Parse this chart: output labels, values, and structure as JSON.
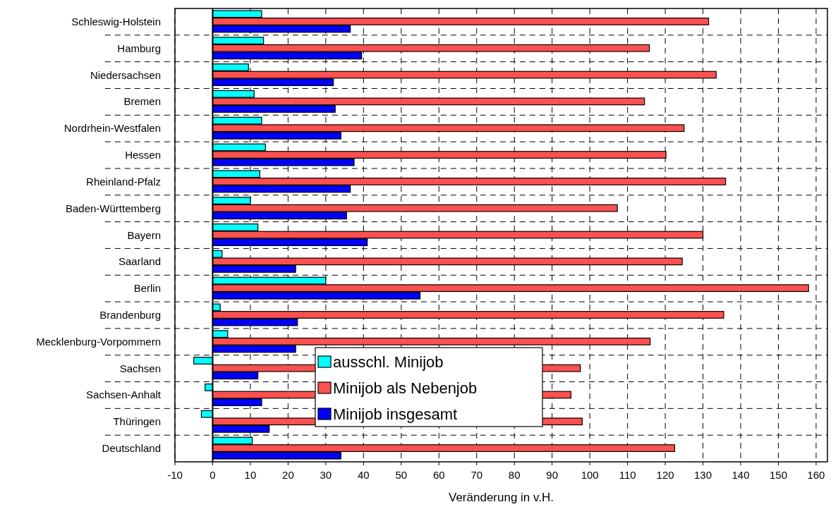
{
  "chart_data": {
    "type": "bar",
    "orientation": "horizontal",
    "xlabel": "Veränderung in v.H.",
    "categories": [
      "Schleswig-Holstein",
      "Hamburg",
      "Niedersachsen",
      "Bremen",
      "Nordrhein-Westfalen",
      "Hessen",
      "Rheinland-Pfalz",
      "Baden-Württemberg",
      "Bayern",
      "Saarland",
      "Berlin",
      "Brandenburg",
      "Mecklenburg-Vorpommern",
      "Sachsen",
      "Sachsen-Anhalt",
      "Thüringen",
      "Deutschland"
    ],
    "series": [
      {
        "name": "ausschl. Minijob",
        "color": "#00ffff",
        "values": [
          13,
          13.5,
          9.5,
          11,
          13,
          14,
          12.5,
          10,
          12,
          2.5,
          30,
          2,
          4,
          -5,
          -2,
          -3,
          10.5
        ]
      },
      {
        "name": "Minijob als Nebenjob",
        "color": "#ff5050",
        "values": [
          131.5,
          115.8,
          133.5,
          114.5,
          125,
          120.2,
          136,
          107.3,
          130,
          124.5,
          158,
          135.5,
          116,
          97.5,
          95,
          98,
          122.5
        ]
      },
      {
        "name": "Minijob insgesamt",
        "color": "#0000ff",
        "values": [
          36.5,
          39.5,
          32,
          32.5,
          34,
          37.5,
          36.5,
          35.5,
          41,
          22,
          55,
          22.5,
          22,
          12,
          13,
          15,
          34
        ]
      }
    ],
    "xlim": [
      -10,
      163
    ],
    "xticks": [
      -10,
      0,
      10,
      20,
      30,
      40,
      50,
      60,
      70,
      80,
      90,
      100,
      110,
      120,
      130,
      140,
      150,
      160
    ],
    "grid": true,
    "legend": "bottom"
  }
}
